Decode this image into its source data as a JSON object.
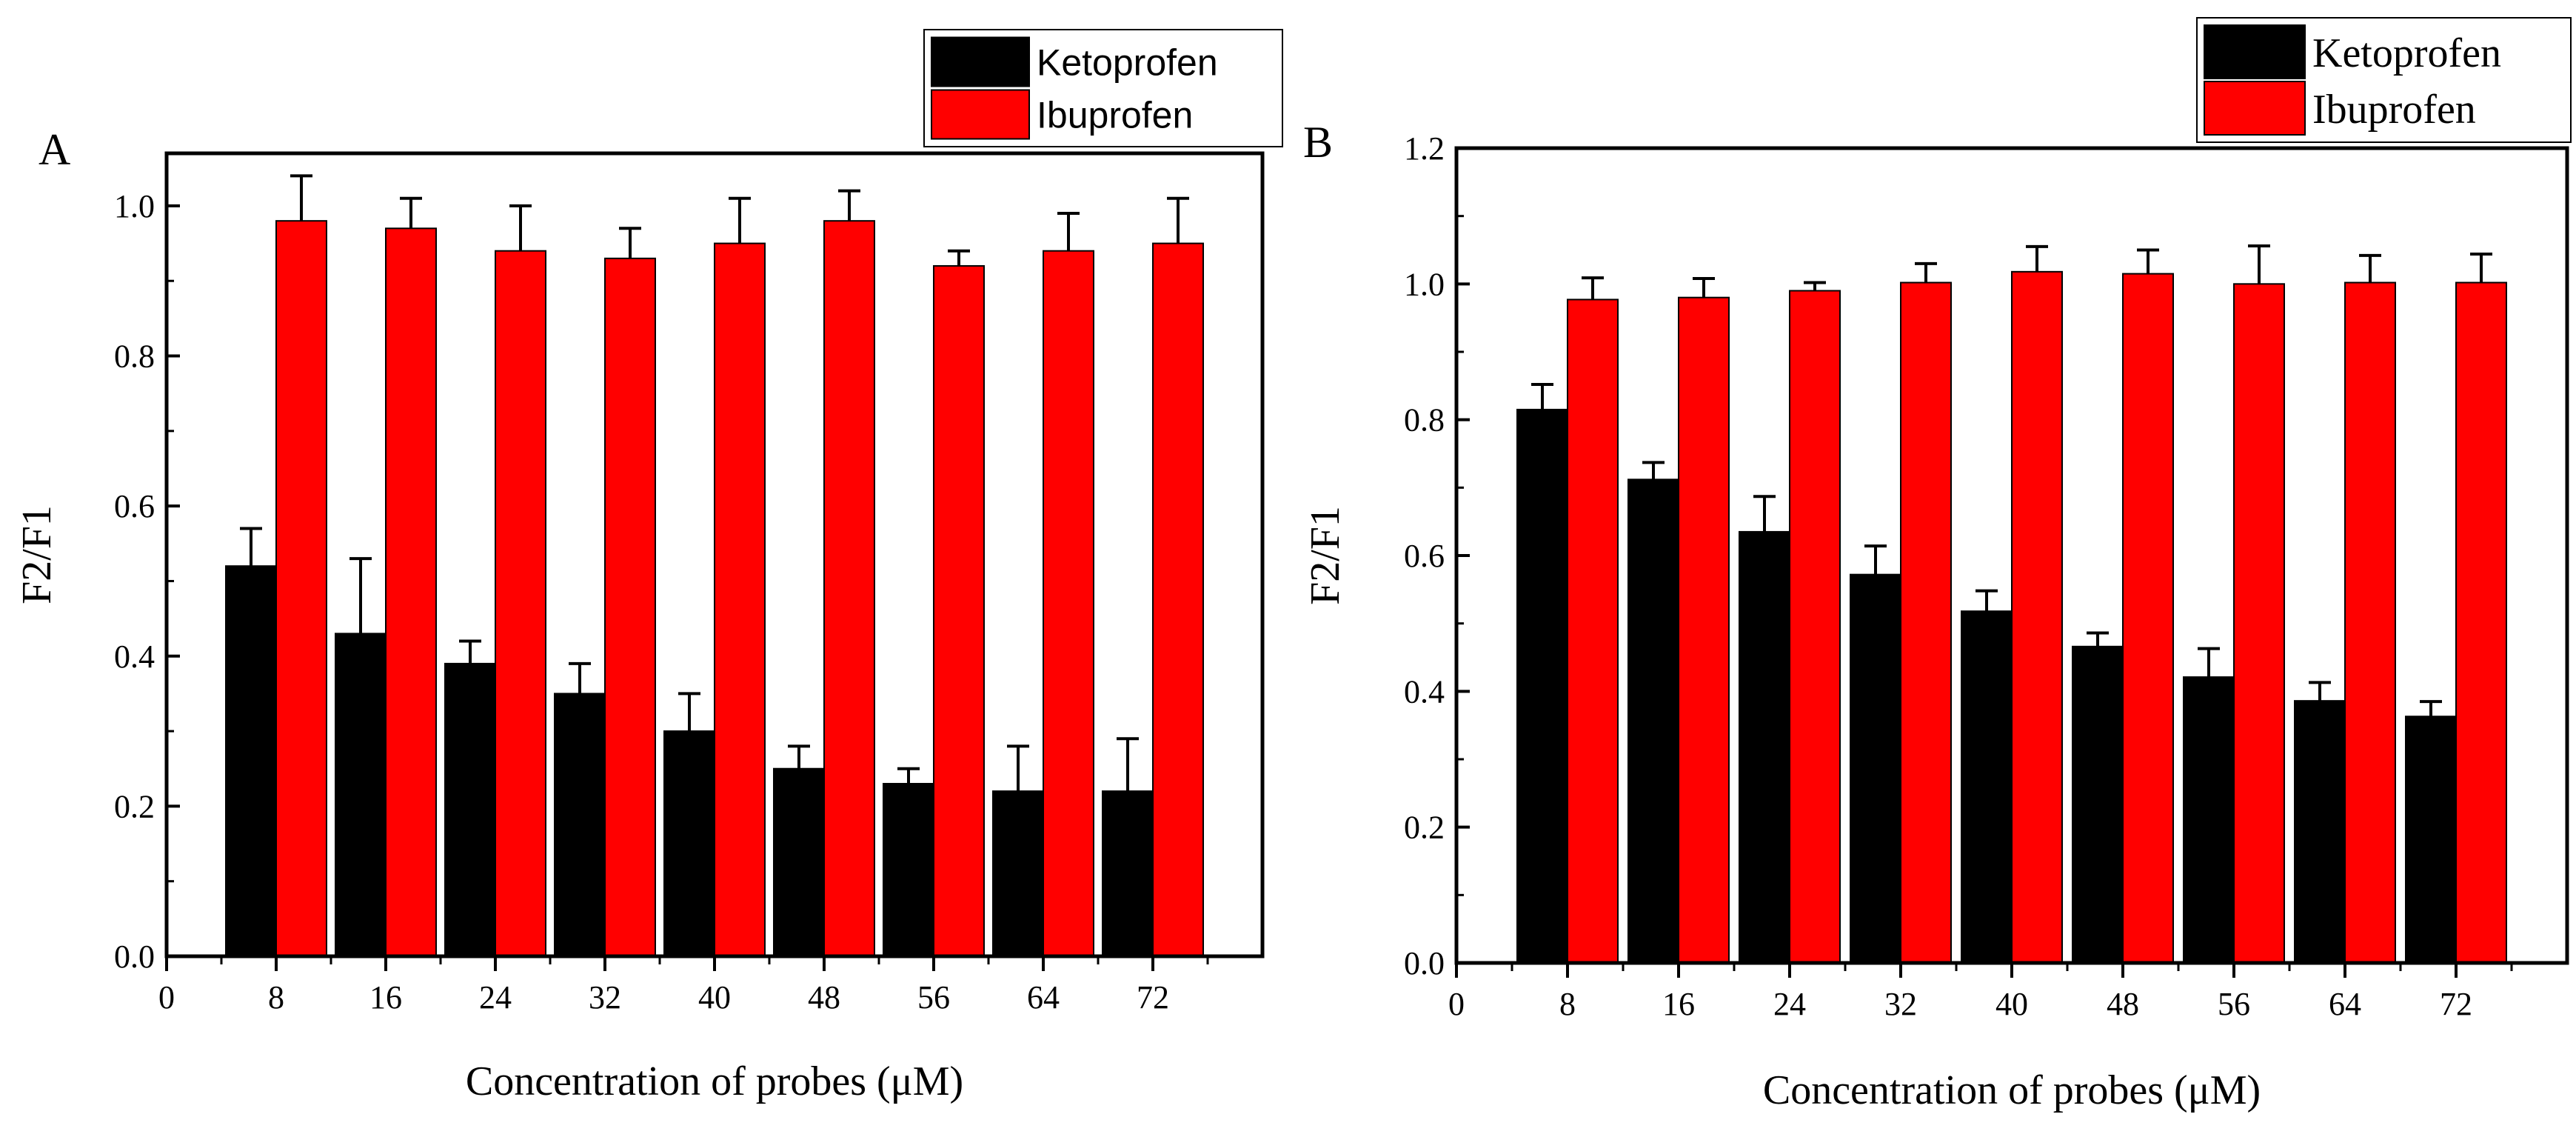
{
  "figure": {
    "description_free": true,
    "colors": {
      "ketoprofen": "#000000",
      "ibuprofen": "#ff0000",
      "axis": "#000000",
      "background": "#ffffff"
    }
  },
  "chart_data": [
    {
      "type": "bar",
      "panel_label": "A",
      "title": "",
      "xlabel": "Concentration of probes (μM)",
      "ylabel": "F2/F1",
      "x_ticks": [
        "0",
        "8",
        "16",
        "24",
        "32",
        "40",
        "48",
        "56",
        "64",
        "72"
      ],
      "x_range": [
        0,
        80
      ],
      "ylim": [
        0,
        1.07
      ],
      "y_ticks": [
        "0.0",
        "0.2",
        "0.4",
        "0.6",
        "0.8",
        "1.0"
      ],
      "y_tick_values": [
        0,
        0.2,
        0.4,
        0.6,
        0.8,
        1.0
      ],
      "categories": [
        8,
        16,
        24,
        32,
        40,
        48,
        56,
        64,
        72
      ],
      "legend": {
        "placement": "top-right, outside"
      },
      "series": [
        {
          "name": "Ketoprofen",
          "color": "#000000",
          "values": [
            0.52,
            0.43,
            0.39,
            0.35,
            0.3,
            0.25,
            0.23,
            0.22,
            0.22
          ],
          "errors": [
            0.05,
            0.1,
            0.03,
            0.04,
            0.05,
            0.03,
            0.02,
            0.06,
            0.07
          ]
        },
        {
          "name": "Ibuprofen",
          "color": "#ff0000",
          "values": [
            0.98,
            0.97,
            0.94,
            0.93,
            0.95,
            0.98,
            0.92,
            0.94,
            0.95
          ],
          "errors": [
            0.06,
            0.04,
            0.06,
            0.04,
            0.06,
            0.04,
            0.02,
            0.05,
            0.06
          ]
        }
      ]
    },
    {
      "type": "bar",
      "panel_label": "B",
      "title": "",
      "xlabel": "Concentration of probes (μM)",
      "ylabel": "F2/F1",
      "x_ticks": [
        "0",
        "8",
        "16",
        "24",
        "32",
        "40",
        "48",
        "56",
        "64",
        "72"
      ],
      "x_range": [
        0,
        80
      ],
      "ylim": [
        0,
        1.2
      ],
      "y_ticks": [
        "0.0",
        "0.2",
        "0.4",
        "0.6",
        "0.8",
        "1.0",
        "1.2"
      ],
      "y_tick_values": [
        0,
        0.2,
        0.4,
        0.6,
        0.8,
        1.0,
        1.2
      ],
      "categories": [
        8,
        16,
        24,
        32,
        40,
        48,
        56,
        64,
        72
      ],
      "legend": {
        "placement": "top-right, outside"
      },
      "series": [
        {
          "name": "Ketoprofen",
          "color": "#000000",
          "values": [
            0.815,
            0.712,
            0.635,
            0.572,
            0.518,
            0.466,
            0.421,
            0.386,
            0.363
          ],
          "errors": [
            0.037,
            0.025,
            0.052,
            0.042,
            0.03,
            0.02,
            0.042,
            0.027,
            0.022
          ]
        },
        {
          "name": "Ibuprofen",
          "color": "#ff0000",
          "values": [
            0.977,
            0.98,
            0.99,
            1.002,
            1.018,
            1.015,
            1.0,
            1.002,
            1.002
          ],
          "errors": [
            0.032,
            0.028,
            0.012,
            0.028,
            0.037,
            0.035,
            0.056,
            0.04,
            0.042
          ]
        }
      ]
    }
  ]
}
